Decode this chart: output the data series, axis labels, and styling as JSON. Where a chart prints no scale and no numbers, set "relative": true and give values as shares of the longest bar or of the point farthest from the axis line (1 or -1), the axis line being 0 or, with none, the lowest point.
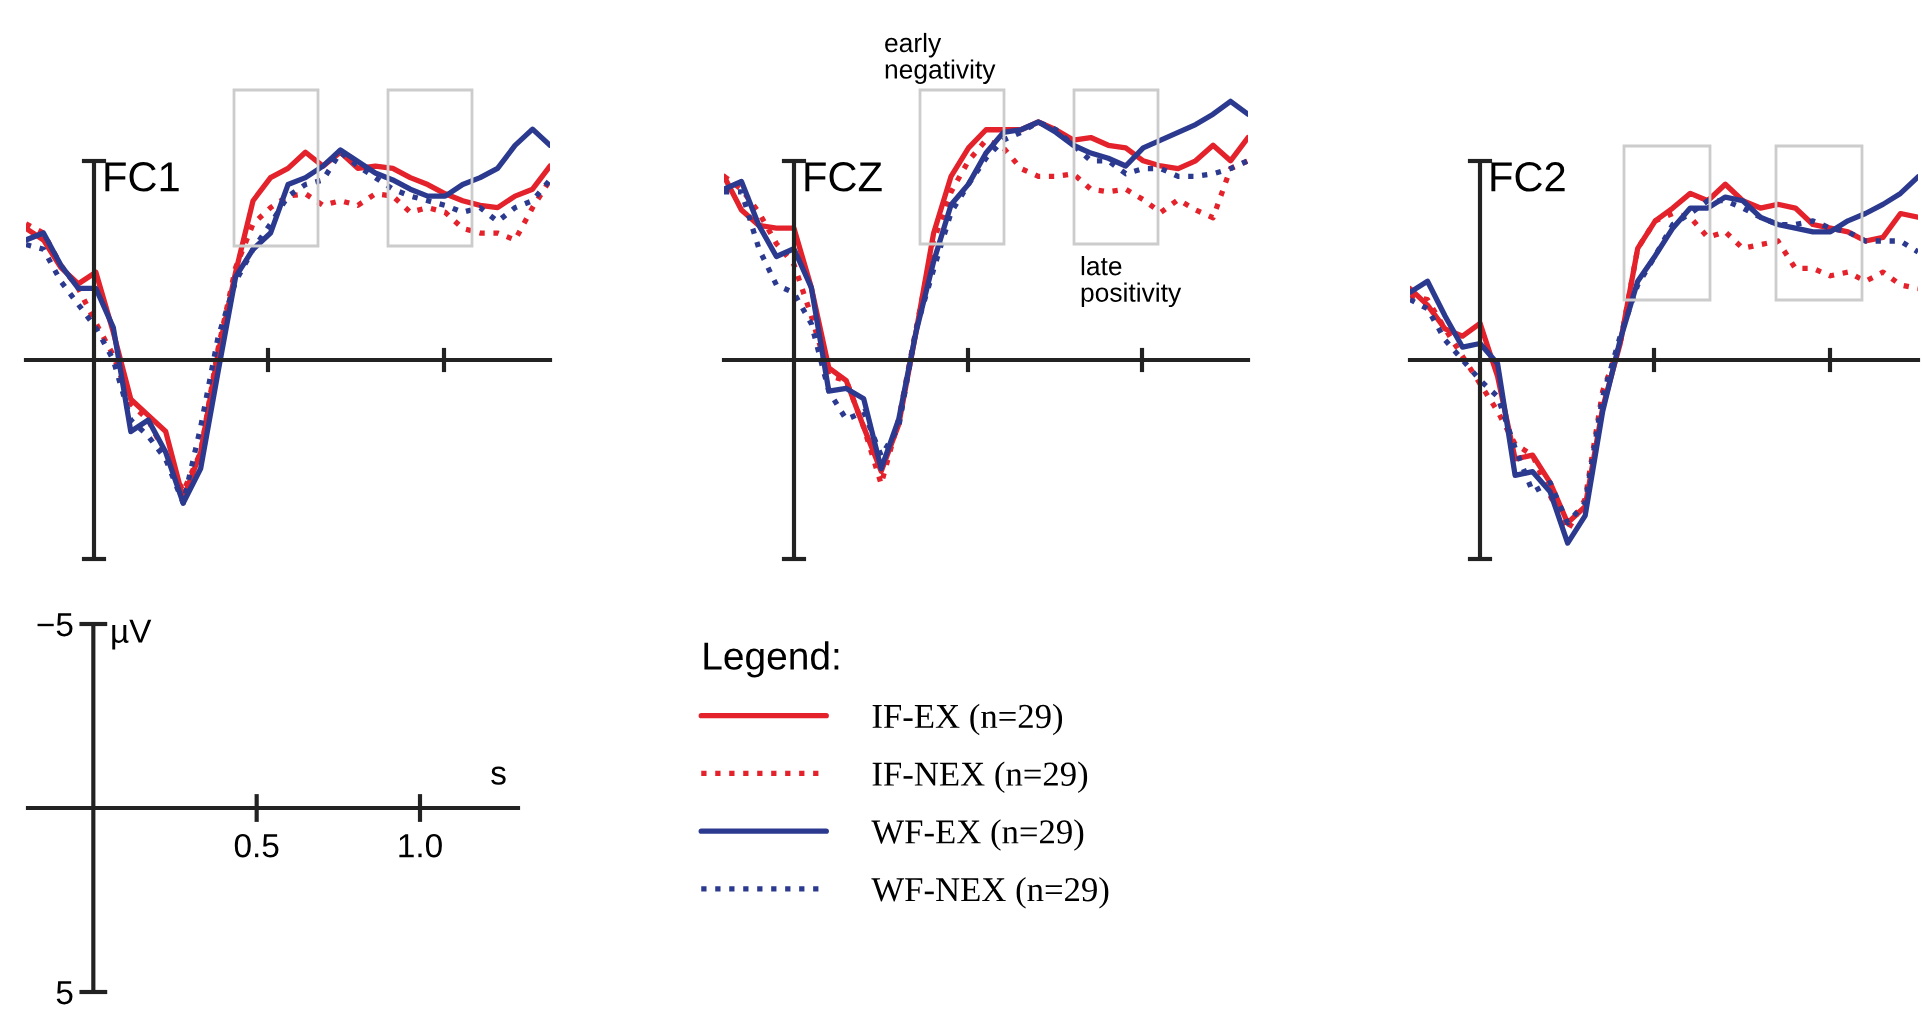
{
  "chart_data": [
    {
      "type": "line",
      "title": "FC1",
      "relative": true,
      "categories": [
        null,
        null,
        null,
        null,
        null,
        null,
        null,
        null,
        null,
        null,
        null,
        null,
        null,
        null,
        null,
        null,
        null,
        null,
        null,
        null,
        null,
        null,
        null,
        null,
        null,
        null,
        null,
        null,
        null,
        null,
        null
      ],
      "series": [
        {
          "color": "#e3222b",
          "line_style": "solid",
          "values": [
            0.57,
            0.52,
            0.4,
            0.33,
            0.38,
            0.12,
            -0.17,
            -0.24,
            -0.31,
            -0.6,
            -0.4,
            0.03,
            0.38,
            0.69,
            0.79,
            0.83,
            0.9,
            0.84,
            0.9,
            0.83,
            0.84,
            0.83,
            0.79,
            0.76,
            0.72,
            0.69,
            0.67,
            0.66,
            0.71,
            0.74,
            0.84
          ]
        },
        {
          "color": "#e3222b",
          "line_style": "dotted",
          "values": [
            0.59,
            0.55,
            0.41,
            0.31,
            0.16,
            0.02,
            -0.19,
            -0.26,
            -0.41,
            -0.57,
            -0.4,
            0.05,
            0.4,
            0.59,
            0.66,
            0.71,
            0.72,
            0.67,
            0.69,
            0.67,
            0.72,
            0.71,
            0.64,
            0.66,
            0.64,
            0.57,
            0.55,
            0.55,
            0.52,
            0.66,
            0.78
          ]
        },
        {
          "color": "#2b3a8f",
          "line_style": "solid",
          "values": [
            0.52,
            0.55,
            0.41,
            0.31,
            0.31,
            0.14,
            -0.31,
            -0.26,
            -0.4,
            -0.62,
            -0.47,
            -0.05,
            0.36,
            0.48,
            0.55,
            0.76,
            0.79,
            0.84,
            0.91,
            0.86,
            0.81,
            0.78,
            0.74,
            0.71,
            0.71,
            0.76,
            0.79,
            0.83,
            0.93,
            1,
            0.93
          ]
        },
        {
          "color": "#2b3a8f",
          "line_style": "dotted",
          "values": [
            0.5,
            0.48,
            0.34,
            0.24,
            0.14,
            0,
            -0.26,
            -0.33,
            -0.43,
            -0.62,
            -0.29,
            0.1,
            0.34,
            0.48,
            0.59,
            0.71,
            0.76,
            0.78,
            0.9,
            0.84,
            0.79,
            0.74,
            0.71,
            0.69,
            0.67,
            0.64,
            0.66,
            0.6,
            0.66,
            0.69,
            0.78
          ]
        }
      ]
    },
    {
      "type": "line",
      "title": "FCZ",
      "relative": true,
      "legend": "bottom",
      "legend_title": "Legend:",
      "annotations": [
        "early negativity",
        "late positivity"
      ],
      "categories": [
        null,
        null,
        null,
        null,
        null,
        null,
        null,
        null,
        null,
        null,
        null,
        null,
        null,
        null,
        null,
        null,
        null,
        null,
        null,
        null,
        null,
        null,
        null,
        null,
        null,
        null,
        null,
        null,
        null,
        null,
        null
      ],
      "series": [
        {
          "name": "IF-EX (n=29)",
          "color": "#e3222b",
          "line_style": "solid",
          "values": [
            0.71,
            0.58,
            0.52,
            0.51,
            0.51,
            0.28,
            -0.03,
            -0.08,
            -0.26,
            -0.43,
            -0.25,
            0.11,
            0.49,
            0.71,
            0.82,
            0.89,
            0.89,
            0.89,
            0.92,
            0.89,
            0.85,
            0.86,
            0.83,
            0.82,
            0.77,
            0.75,
            0.74,
            0.77,
            0.83,
            0.77,
            0.86
          ]
        },
        {
          "name": "IF-NEX (n=29)",
          "color": "#e3222b",
          "line_style": "dotted",
          "values": [
            0.71,
            0.66,
            0.57,
            0.45,
            0.37,
            0.17,
            -0.06,
            -0.08,
            -0.26,
            -0.48,
            -0.23,
            0.12,
            0.46,
            0.65,
            0.77,
            0.85,
            0.82,
            0.74,
            0.71,
            0.71,
            0.72,
            0.66,
            0.65,
            0.66,
            0.62,
            0.57,
            0.62,
            0.58,
            0.55,
            0.74,
            0.77
          ]
        },
        {
          "name": "WF-EX (n=29)",
          "color": "#2b3a8f",
          "line_style": "solid",
          "values": [
            0.66,
            0.69,
            0.52,
            0.4,
            0.43,
            0.28,
            -0.12,
            -0.11,
            -0.15,
            -0.42,
            -0.23,
            0.11,
            0.38,
            0.6,
            0.68,
            0.8,
            0.88,
            0.89,
            0.92,
            0.88,
            0.83,
            0.8,
            0.78,
            0.75,
            0.82,
            0.85,
            0.88,
            0.91,
            0.95,
            1,
            0.95
          ]
        },
        {
          "name": "WF-NEX (n=29)",
          "color": "#2b3a8f",
          "line_style": "dotted",
          "values": [
            0.65,
            0.65,
            0.43,
            0.29,
            0.26,
            0.14,
            -0.12,
            -0.23,
            -0.2,
            -0.37,
            -0.26,
            0.12,
            0.35,
            0.57,
            0.68,
            0.78,
            0.85,
            0.88,
            0.92,
            0.89,
            0.83,
            0.77,
            0.77,
            0.72,
            0.74,
            0.74,
            0.71,
            0.71,
            0.72,
            0.74,
            0.77
          ]
        }
      ]
    },
    {
      "type": "line",
      "title": "FC2",
      "relative": true,
      "categories": [
        null,
        null,
        null,
        null,
        null,
        null,
        null,
        null,
        null,
        null,
        null,
        null,
        null,
        null,
        null,
        null,
        null,
        null,
        null,
        null,
        null,
        null,
        null,
        null,
        null,
        null,
        null,
        null,
        null,
        null
      ],
      "series": [
        {
          "color": "#e3222b",
          "line_style": "solid",
          "values": [
            0.39,
            0.3,
            0.17,
            0.13,
            0.2,
            -0.09,
            -0.54,
            -0.52,
            -0.67,
            -0.89,
            -0.8,
            -0.26,
            0.09,
            0.61,
            0.76,
            0.83,
            0.91,
            0.87,
            0.96,
            0.87,
            0.83,
            0.85,
            0.83,
            0.74,
            0.72,
            0.7,
            0.65,
            0.67,
            0.8,
            0.78
          ]
        },
        {
          "color": "#e3222b",
          "line_style": "dotted",
          "values": [
            0.35,
            0.33,
            0.17,
            0.02,
            -0.13,
            -0.28,
            -0.46,
            -0.52,
            -0.74,
            -0.93,
            -0.76,
            -0.17,
            0.09,
            0.61,
            0.76,
            0.8,
            0.78,
            0.67,
            0.7,
            0.61,
            0.63,
            0.65,
            0.5,
            0.5,
            0.46,
            0.48,
            0.43,
            0.48,
            0.41,
            0.39
          ]
        },
        {
          "color": "#2b3a8f",
          "line_style": "solid",
          "values": [
            0.37,
            0.43,
            0.24,
            0.07,
            0.09,
            -0.02,
            -0.63,
            -0.61,
            -0.72,
            -1,
            -0.85,
            -0.28,
            0.11,
            0.43,
            0.57,
            0.72,
            0.83,
            0.83,
            0.89,
            0.87,
            0.78,
            0.74,
            0.72,
            0.7,
            0.7,
            0.76,
            0.8,
            0.85,
            0.91,
            1
          ]
        },
        {
          "color": "#2b3a8f",
          "line_style": "dotted",
          "values": [
            0.33,
            0.28,
            0.11,
            0,
            -0.11,
            -0.2,
            -0.48,
            -0.72,
            -0.67,
            -0.89,
            -0.78,
            -0.2,
            0.13,
            0.41,
            0.57,
            0.74,
            0.8,
            0.87,
            0.87,
            0.83,
            0.78,
            0.74,
            0.74,
            0.76,
            0.72,
            0.7,
            0.65,
            0.65,
            0.65,
            0.59
          ]
        }
      ]
    },
    {
      "type": "line",
      "xlabel": "s",
      "ylabel": "µV",
      "xlim": [
        -0.2,
        1.3
      ],
      "ylim": [
        5,
        -5
      ],
      "xticks": [
        0.5,
        {
          "value": 1,
          "label": "1.0"
        }
      ],
      "yticks": [
        {
          "value": -5,
          "label": "−5"
        },
        5
      ]
    }
  ]
}
